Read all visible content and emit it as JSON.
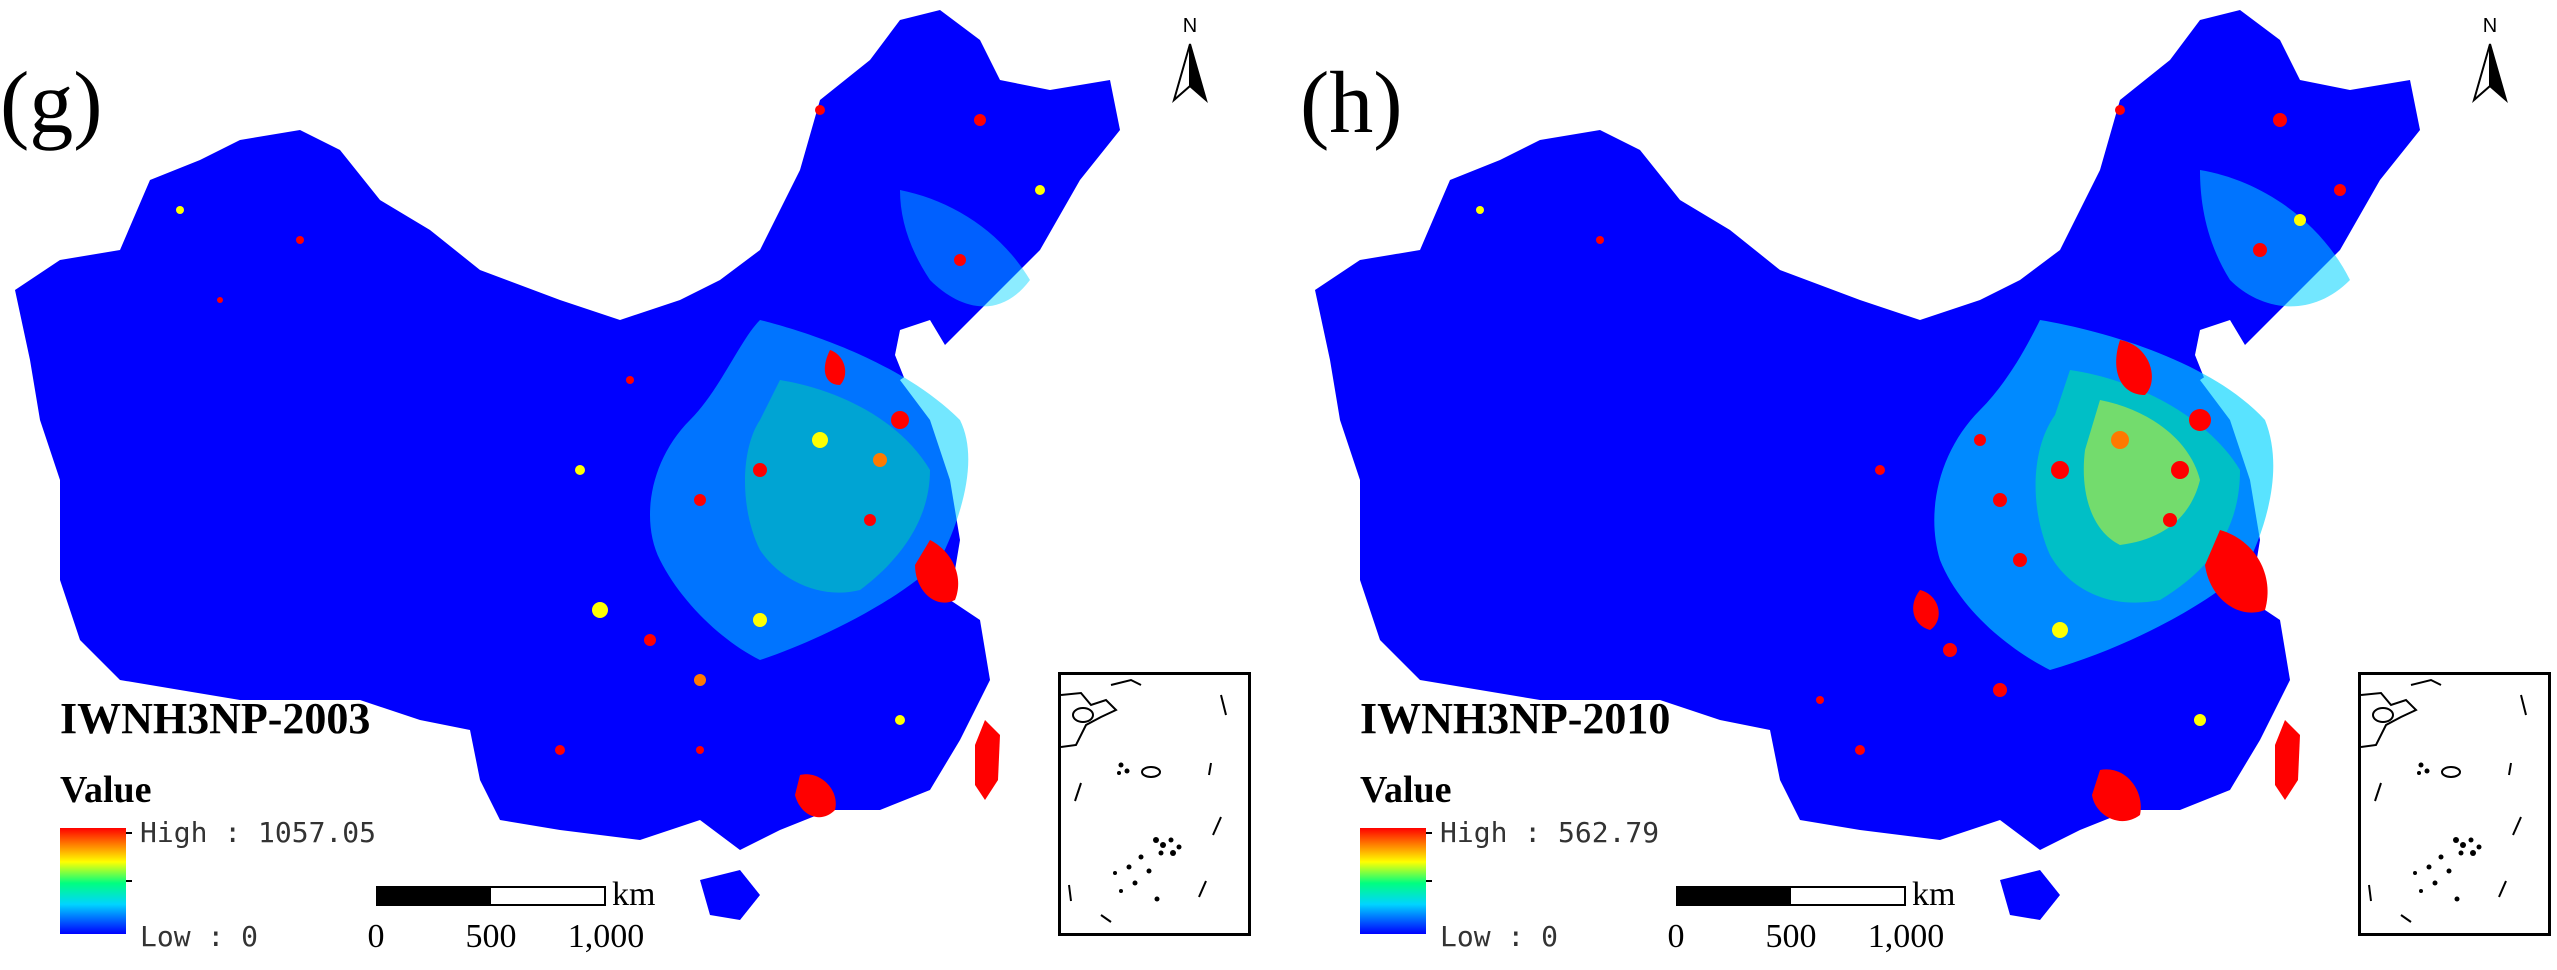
{
  "figure": {
    "panels": [
      {
        "label": "(g)",
        "title": "IWNH3NP-2003",
        "legend": {
          "heading": "Value",
          "high": "High : 1057.05",
          "low": "Low : 0"
        },
        "scale": {
          "unit": "km",
          "ticks": [
            "0",
            "500",
            "1,000"
          ]
        },
        "north": "N"
      },
      {
        "label": "(h)",
        "title": "IWNH3NP-2010",
        "legend": {
          "heading": "Value",
          "high": "High : 562.79",
          "low": "Low : 0"
        },
        "scale": {
          "unit": "km",
          "ticks": [
            "0",
            "500",
            "1,000"
          ]
        },
        "north": "N"
      }
    ]
  },
  "colors": {
    "background_low": "#0000ff",
    "mid": "#00d4ff",
    "green": "#00ff80",
    "yellow": "#ffff00",
    "high": "#ff0000"
  }
}
